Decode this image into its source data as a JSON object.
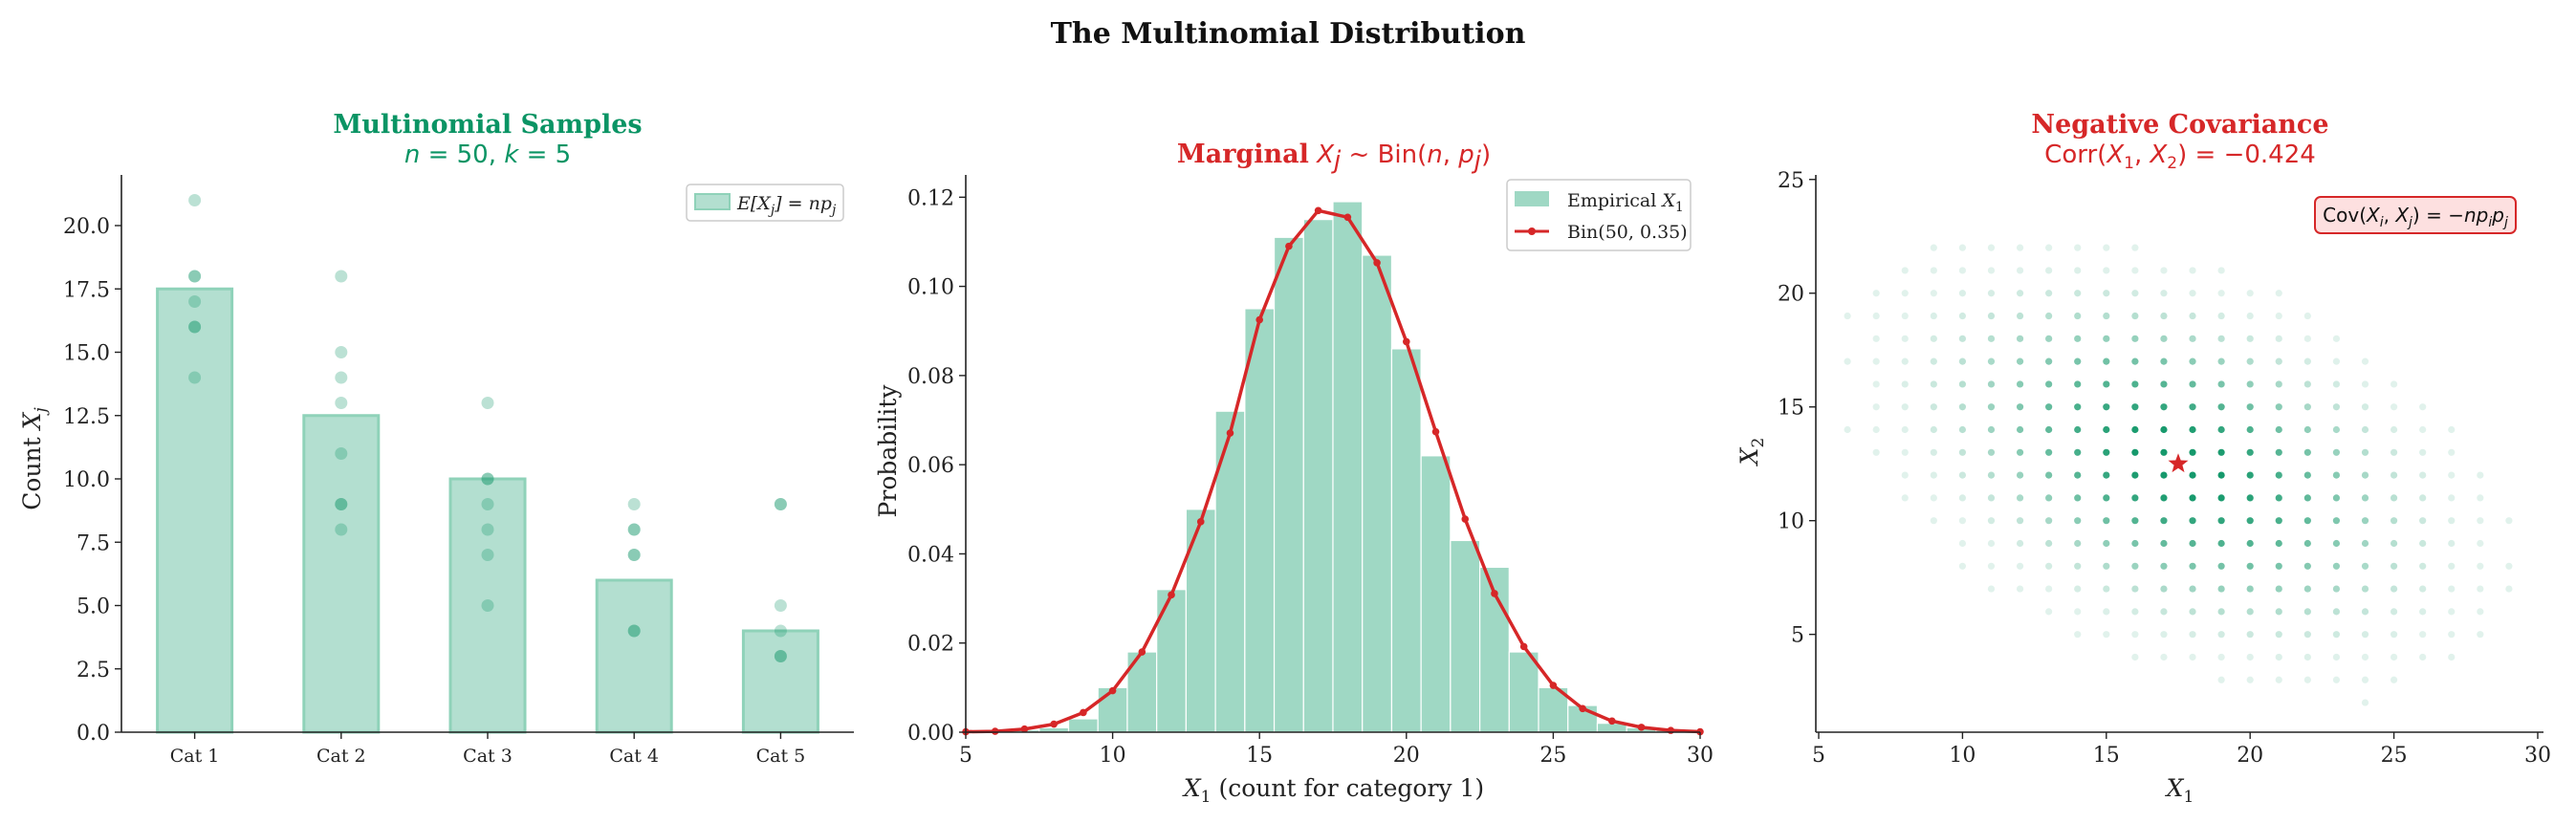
{
  "figure": {
    "suptitle": "The Multinomial Distribution"
  },
  "colors": {
    "green": "#0a9464",
    "green_fill": "#b3dfd0",
    "green_edge": "#8fd2b9",
    "hist_fill": "#9fd8c4",
    "red": "#d62728",
    "annot_fill": "#fde0e0"
  },
  "chart_data": [
    {
      "type": "bar",
      "title": "Multinomial Samples",
      "subtitle": "n = 50,  k = 5",
      "xlabel": "",
      "ylabel": "Count X_j",
      "ylim": [
        0,
        22
      ],
      "yticks": [
        "0.0",
        "2.5",
        "5.0",
        "7.5",
        "10.0",
        "12.5",
        "15.0",
        "17.5",
        "20.0"
      ],
      "categories": [
        "Cat 1",
        "Cat 2",
        "Cat 3",
        "Cat 4",
        "Cat 5"
      ],
      "values": [
        17.5,
        12.5,
        10.0,
        6.0,
        4.0
      ],
      "legend": {
        "label": "E[X_j] = np_j",
        "position": "upper right"
      },
      "samples": [
        [
          21,
          18,
          18,
          17,
          16,
          16,
          14
        ],
        [
          18,
          15,
          14,
          13,
          11,
          9,
          9,
          8
        ],
        [
          13,
          10,
          10,
          9,
          8,
          7,
          5
        ],
        [
          9,
          8,
          8,
          7,
          7,
          4,
          4
        ],
        [
          9,
          9,
          5,
          4,
          3,
          3
        ]
      ],
      "grid": false
    },
    {
      "type": "bar",
      "title": "Marginal",
      "title_math": "X_j ~ Bin(n, p_j)",
      "xlabel": "X_1 (count for category 1)",
      "ylabel": "Probability",
      "xlim": [
        5,
        30
      ],
      "ylim": [
        0,
        0.125
      ],
      "xticks": [
        "5",
        "10",
        "15",
        "20",
        "25",
        "30"
      ],
      "yticks": [
        "0.00",
        "0.02",
        "0.04",
        "0.06",
        "0.08",
        "0.10",
        "0.12"
      ],
      "histogram": {
        "name": "Empirical X_1",
        "x": [
          6,
          7,
          8,
          9,
          10,
          11,
          12,
          13,
          14,
          15,
          16,
          17,
          18,
          19,
          20,
          21,
          22,
          23,
          24,
          25,
          26,
          27,
          28,
          29
        ],
        "values": [
          0.0,
          0.0005,
          0.001,
          0.003,
          0.01,
          0.018,
          0.032,
          0.05,
          0.072,
          0.095,
          0.111,
          0.115,
          0.119,
          0.107,
          0.086,
          0.062,
          0.043,
          0.037,
          0.018,
          0.01,
          0.006,
          0.002,
          0.001,
          0.0005
        ]
      },
      "series": [
        {
          "name": "Bin(50, 0.35)",
          "x": [
            5,
            6,
            7,
            8,
            9,
            10,
            11,
            12,
            13,
            14,
            15,
            16,
            17,
            18,
            19,
            20,
            21,
            22,
            23,
            24,
            25,
            26,
            27,
            28,
            29,
            30
          ],
          "values": [
            0.0001,
            0.0002,
            0.0007,
            0.0018,
            0.0044,
            0.0093,
            0.018,
            0.0308,
            0.0472,
            0.0671,
            0.0925,
            0.109,
            0.117,
            0.1155,
            0.1053,
            0.0876,
            0.0674,
            0.0478,
            0.0311,
            0.0192,
            0.0105,
            0.0053,
            0.0025,
            0.0011,
            0.0004,
            0.0001
          ]
        }
      ],
      "legend": {
        "position": "upper right"
      },
      "grid": false
    },
    {
      "type": "scatter",
      "title": "Negative Covariance",
      "subtitle": "Corr(X_1, X_2) = −0.424",
      "xlabel": "X_1",
      "ylabel": "X_2",
      "xlim": [
        4.9,
        30.2
      ],
      "ylim": [
        0.7,
        25.2
      ],
      "xticks": [
        "5",
        "10",
        "15",
        "20",
        "25",
        "30"
      ],
      "yticks": [
        "5",
        "10",
        "15",
        "20",
        "25"
      ],
      "mean_point": {
        "x": 17.5,
        "y": 12.5,
        "marker": "star"
      },
      "annotation": "Cov(X_i, X_j) = −np_i p_j",
      "center": [
        17.5,
        12.5
      ],
      "sigma": [
        3.35,
        2.96
      ],
      "corr": -0.424,
      "grid": false
    }
  ]
}
